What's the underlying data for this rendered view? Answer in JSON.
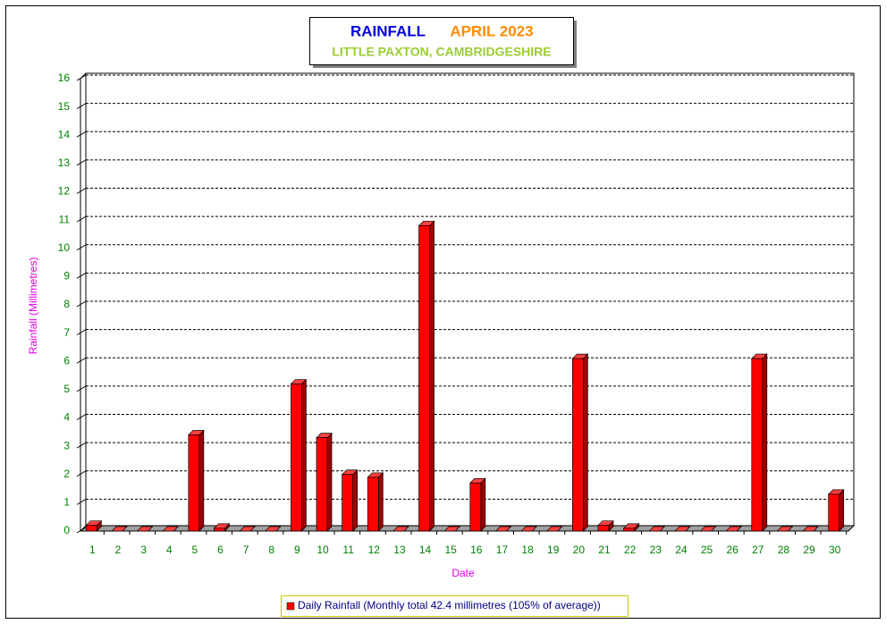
{
  "chart_data": {
    "type": "bar",
    "title": "RAINFALL",
    "title_period": "APRIL 2023",
    "subtitle": "LITTLE PAXTON, CAMBRIDGESHIRE",
    "x_label": "Date",
    "y_label": "Rainfall  (Millimetres)",
    "categories": [
      "1",
      "2",
      "3",
      "4",
      "5",
      "6",
      "7",
      "8",
      "9",
      "10",
      "11",
      "12",
      "13",
      "14",
      "15",
      "16",
      "17",
      "18",
      "19",
      "20",
      "21",
      "22",
      "23",
      "24",
      "25",
      "26",
      "27",
      "28",
      "29",
      "30"
    ],
    "series": [
      {
        "name": "Daily Rainfall (Monthly total 42.4 millimetres (105% of average))",
        "color": "#ff0000",
        "values": [
          0.2,
          0,
          0,
          0,
          3.4,
          0.1,
          0,
          0,
          5.2,
          3.3,
          2.0,
          1.9,
          0,
          10.8,
          0,
          1.7,
          0,
          0,
          0,
          6.1,
          0.2,
          0.1,
          0,
          0,
          0,
          0,
          6.1,
          0,
          0,
          1.3
        ]
      }
    ],
    "ylim": [
      0,
      16
    ],
    "yticks": [
      0,
      1,
      2,
      3,
      4,
      5,
      6,
      7,
      8,
      9,
      10,
      11,
      12,
      13,
      14,
      15,
      16
    ],
    "grid": true
  }
}
